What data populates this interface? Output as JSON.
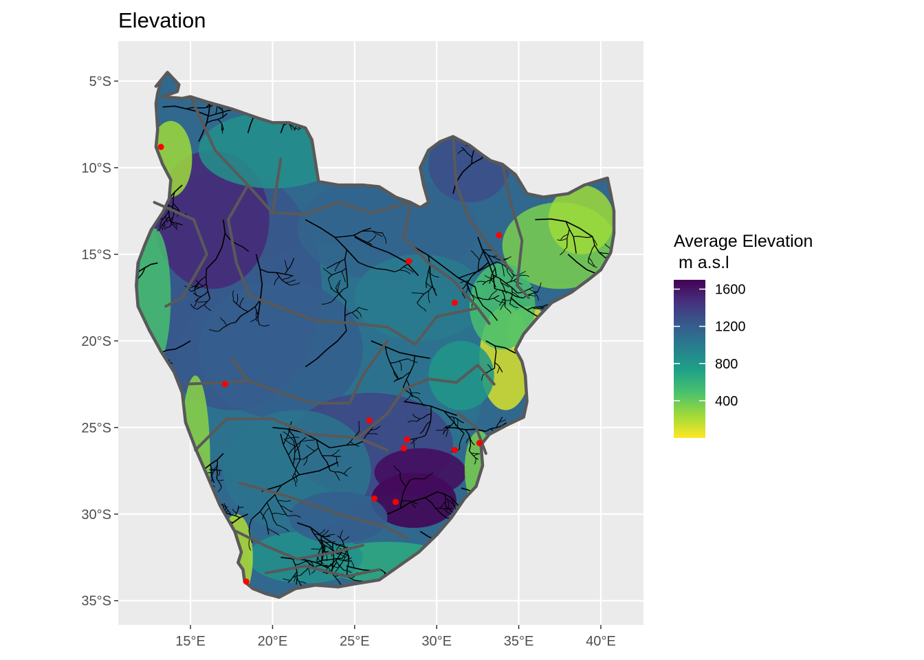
{
  "title": "Elevation",
  "map": {
    "lon_range": [
      10.6,
      42.6
    ],
    "lat_range": [
      -36.4,
      -2.7
    ],
    "x_ticks": [
      {
        "value": 15,
        "label": "15°E"
      },
      {
        "value": 20,
        "label": "20°E"
      },
      {
        "value": 25,
        "label": "25°E"
      },
      {
        "value": 30,
        "label": "30°E"
      },
      {
        "value": 35,
        "label": "35°E"
      },
      {
        "value": 40,
        "label": "40°E"
      }
    ],
    "y_ticks": [
      {
        "value": -5,
        "label": "5°S"
      },
      {
        "value": -10,
        "label": "10°S"
      },
      {
        "value": -15,
        "label": "15°S"
      },
      {
        "value": -20,
        "label": "20°S"
      },
      {
        "value": -25,
        "label": "25°S"
      },
      {
        "value": -30,
        "label": "30°S"
      },
      {
        "value": -35,
        "label": "35°S"
      }
    ],
    "panel_background": "#ebebeb",
    "gridline_color": "#ffffff",
    "border_color": "#595959",
    "river_color": "#000000",
    "point_color": "#ff0000",
    "points": [
      {
        "lon": 13.2,
        "lat": -8.8
      },
      {
        "lon": 33.8,
        "lat": -13.9
      },
      {
        "lon": 28.3,
        "lat": -15.4
      },
      {
        "lon": 31.1,
        "lat": -17.8
      },
      {
        "lon": 17.1,
        "lat": -22.5
      },
      {
        "lon": 25.9,
        "lat": -24.6
      },
      {
        "lon": 28.2,
        "lat": -25.7
      },
      {
        "lon": 28.0,
        "lat": -26.2
      },
      {
        "lon": 31.1,
        "lat": -26.3
      },
      {
        "lon": 32.6,
        "lat": -25.9
      },
      {
        "lon": 26.2,
        "lat": -29.1
      },
      {
        "lon": 27.5,
        "lat": -29.3
      },
      {
        "lon": 18.4,
        "lat": -33.9
      }
    ]
  },
  "legend": {
    "title_line1": "Average Elevation",
    "title_line2": " m a.s.l",
    "min": 0,
    "max": 1700,
    "breaks": [
      {
        "value": 1600,
        "label": "1600"
      },
      {
        "value": 1200,
        "label": "1200"
      },
      {
        "value": 800,
        "label": "800"
      },
      {
        "value": 400,
        "label": "400"
      }
    ],
    "colors": [
      "#fde725",
      "#a0da39",
      "#4ac16d",
      "#1fa187",
      "#277f8e",
      "#365c8d",
      "#46327e",
      "#440154"
    ]
  }
}
